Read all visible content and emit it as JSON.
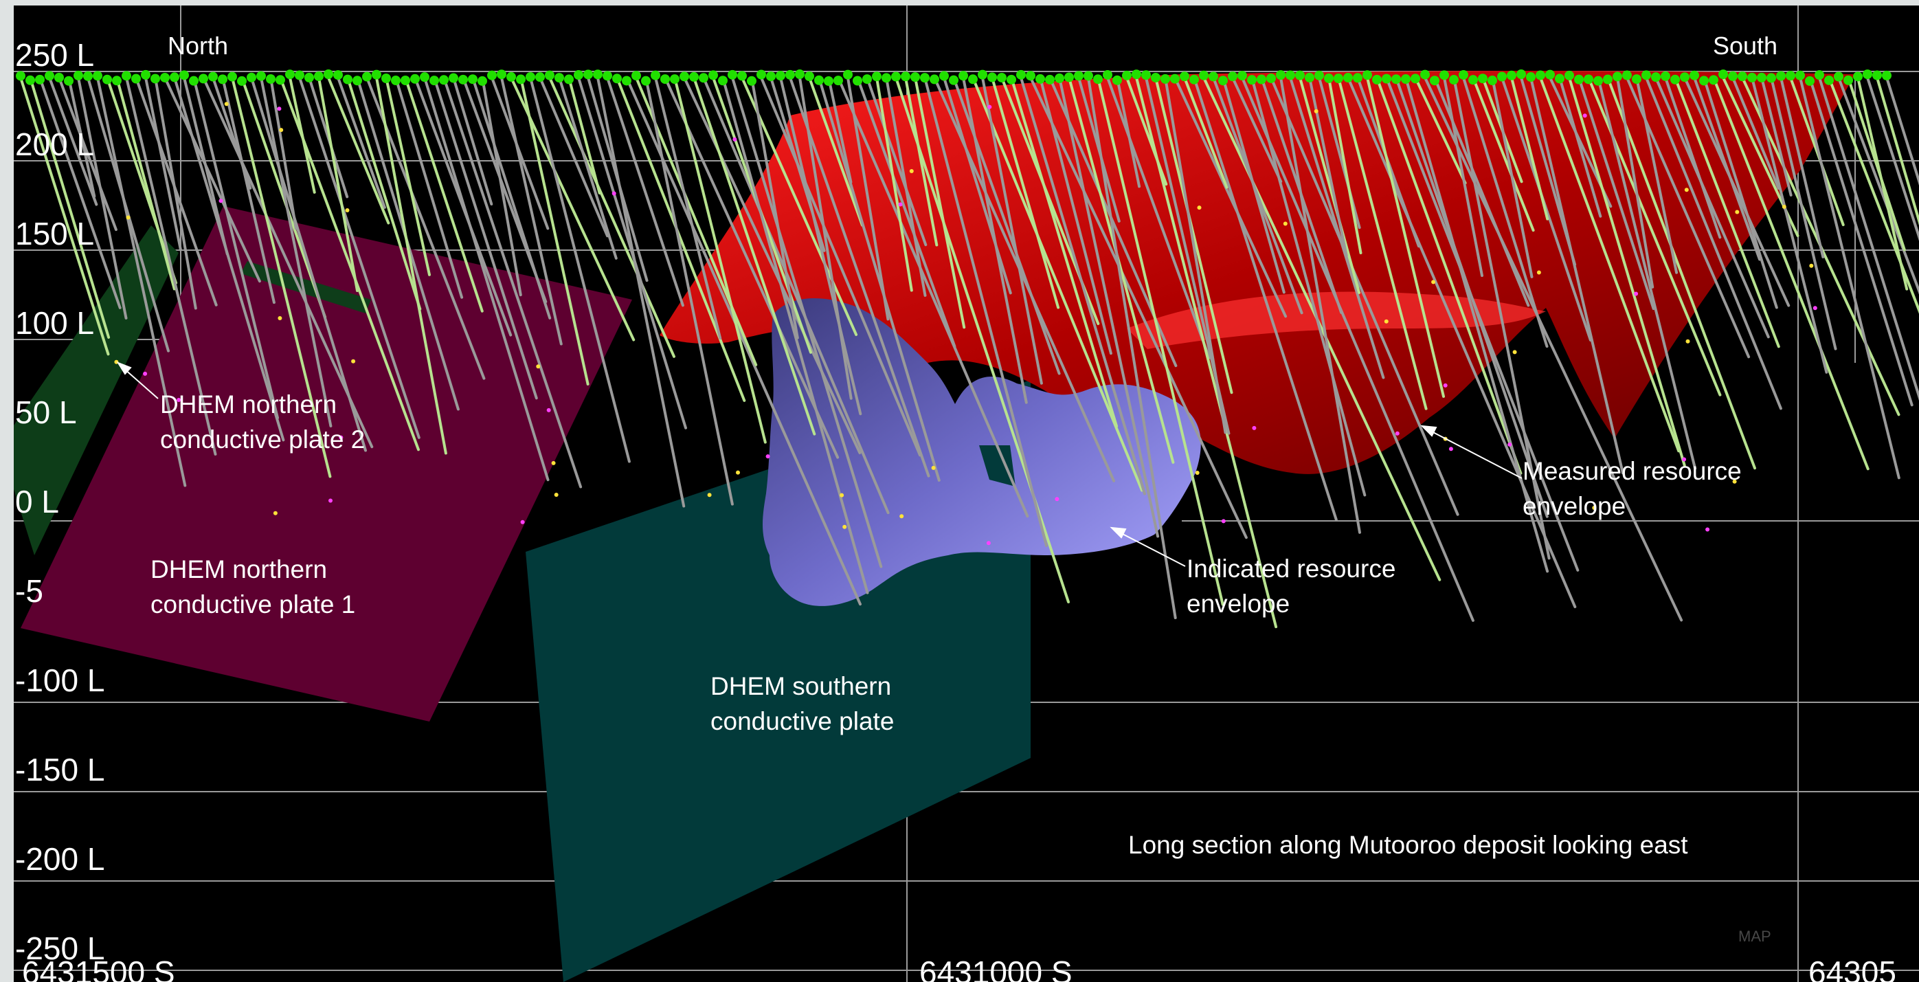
{
  "direction_labels": {
    "north": "North",
    "south": "South"
  },
  "level_labels": [
    "250 L",
    "200 L",
    "150 L",
    "100 L",
    "50 L",
    "0 L",
    "-5",
    "-100 L",
    "-150 L",
    "-200 L",
    "-250 L"
  ],
  "easting_labels": [
    "6431500 S",
    "6431000 S",
    "64305"
  ],
  "annotations": {
    "northern_plate_2": [
      "DHEM northern",
      "conductive plate 2"
    ],
    "northern_plate_1": [
      "DHEM northern",
      "conductive plate 1"
    ],
    "southern_plate": [
      "DHEM southern",
      "conductive plate"
    ],
    "measured_envelope": [
      "Measured resource",
      "envelope"
    ],
    "indicated_envelope": [
      "Indicated resource",
      "envelope"
    ]
  },
  "caption": "Long section along Mutooroo deposit looking east",
  "watermark": "MAP",
  "colors": {
    "background": "#000000",
    "grid": "#9a9a9a",
    "northern_plate": "#5e0030",
    "southern_plate": "#023a3a",
    "green_plate": "#0d3d18",
    "measured_envelope": "#c00000",
    "indicated_envelope": "#6c69c4",
    "collar": "#21e000",
    "drillhole": "#9a9a9a"
  }
}
